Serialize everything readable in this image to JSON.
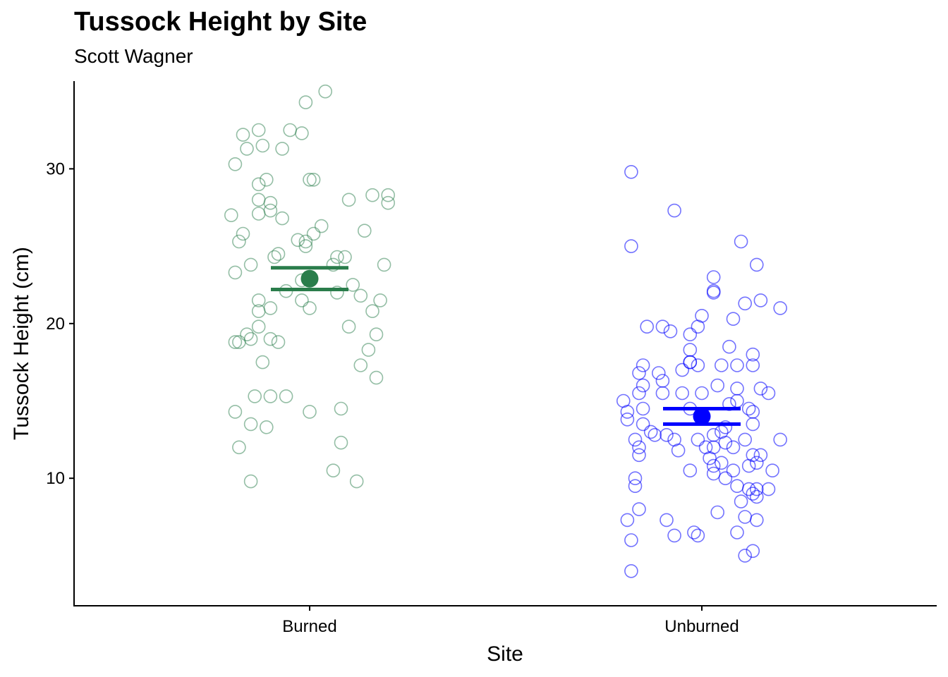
{
  "chart_data": {
    "type": "scatter",
    "title": "Tussock Height by Site",
    "subtitle": "Scott Wagner",
    "xlabel": "Site",
    "ylabel": "Tussock Height (cm)",
    "categories": [
      "Burned",
      "Unburned"
    ],
    "ylim": [
      3.2,
      36.4
    ],
    "yticks": [
      10,
      20,
      30
    ],
    "grid": false,
    "legend": "none",
    "series": [
      {
        "category": "Burned",
        "color": "#2a7d4b",
        "mean": 22.9,
        "se_low": 22.2,
        "se_high": 23.6,
        "points": [
          {
            "x": -0.19,
            "y": 30.3
          },
          {
            "x": -0.17,
            "y": 32.2
          },
          {
            "x": -0.16,
            "y": 31.3
          },
          {
            "x": -0.13,
            "y": 32.5
          },
          {
            "x": -0.12,
            "y": 31.5
          },
          {
            "x": -0.07,
            "y": 31.3
          },
          {
            "x": -0.05,
            "y": 32.5
          },
          {
            "x": -0.02,
            "y": 32.3
          },
          {
            "x": -0.01,
            "y": 34.3
          },
          {
            "x": 0.04,
            "y": 35.0
          },
          {
            "x": -0.13,
            "y": 29.0
          },
          {
            "x": -0.11,
            "y": 29.3
          },
          {
            "x": 0.01,
            "y": 29.3
          },
          {
            "x": 0.0,
            "y": 29.3
          },
          {
            "x": -0.13,
            "y": 28.0
          },
          {
            "x": -0.1,
            "y": 27.8
          },
          {
            "x": -0.13,
            "y": 27.1
          },
          {
            "x": -0.1,
            "y": 27.3
          },
          {
            "x": -0.07,
            "y": 26.8
          },
          {
            "x": -0.2,
            "y": 27.0
          },
          {
            "x": 0.1,
            "y": 28.0
          },
          {
            "x": 0.16,
            "y": 28.3
          },
          {
            "x": 0.2,
            "y": 28.3
          },
          {
            "x": 0.2,
            "y": 27.8
          },
          {
            "x": -0.17,
            "y": 25.8
          },
          {
            "x": -0.18,
            "y": 25.3
          },
          {
            "x": 0.03,
            "y": 26.3
          },
          {
            "x": 0.01,
            "y": 25.8
          },
          {
            "x": -0.03,
            "y": 25.4
          },
          {
            "x": -0.01,
            "y": 25.3
          },
          {
            "x": -0.01,
            "y": 25.0
          },
          {
            "x": 0.14,
            "y": 26.0
          },
          {
            "x": -0.15,
            "y": 23.8
          },
          {
            "x": -0.19,
            "y": 23.3
          },
          {
            "x": -0.09,
            "y": 24.3
          },
          {
            "x": -0.08,
            "y": 24.5
          },
          {
            "x": 0.06,
            "y": 23.8
          },
          {
            "x": 0.07,
            "y": 24.3
          },
          {
            "x": 0.09,
            "y": 24.3
          },
          {
            "x": 0.19,
            "y": 23.8
          },
          {
            "x": -0.13,
            "y": 21.5
          },
          {
            "x": -0.13,
            "y": 20.8
          },
          {
            "x": -0.1,
            "y": 21.0
          },
          {
            "x": -0.06,
            "y": 22.1
          },
          {
            "x": -0.02,
            "y": 21.5
          },
          {
            "x": 0.0,
            "y": 21.0
          },
          {
            "x": 0.07,
            "y": 22.0
          },
          {
            "x": 0.11,
            "y": 22.5
          },
          {
            "x": 0.13,
            "y": 21.8
          },
          {
            "x": 0.16,
            "y": 20.8
          },
          {
            "x": 0.18,
            "y": 21.5
          },
          {
            "x": -0.02,
            "y": 22.8
          },
          {
            "x": -0.18,
            "y": 18.8
          },
          {
            "x": -0.19,
            "y": 18.8
          },
          {
            "x": -0.16,
            "y": 19.3
          },
          {
            "x": -0.15,
            "y": 19.0
          },
          {
            "x": -0.13,
            "y": 19.8
          },
          {
            "x": -0.1,
            "y": 19.0
          },
          {
            "x": -0.08,
            "y": 18.8
          },
          {
            "x": -0.12,
            "y": 17.5
          },
          {
            "x": 0.1,
            "y": 19.8
          },
          {
            "x": 0.15,
            "y": 18.3
          },
          {
            "x": 0.17,
            "y": 19.3
          },
          {
            "x": 0.13,
            "y": 17.3
          },
          {
            "x": 0.17,
            "y": 16.5
          },
          {
            "x": -0.14,
            "y": 15.3
          },
          {
            "x": -0.1,
            "y": 15.3
          },
          {
            "x": -0.06,
            "y": 15.3
          },
          {
            "x": -0.19,
            "y": 14.3
          },
          {
            "x": -0.15,
            "y": 13.5
          },
          {
            "x": -0.11,
            "y": 13.3
          },
          {
            "x": -0.18,
            "y": 12.0
          },
          {
            "x": 0.0,
            "y": 14.3
          },
          {
            "x": 0.08,
            "y": 14.5
          },
          {
            "x": 0.08,
            "y": 12.3
          },
          {
            "x": 0.06,
            "y": 10.5
          },
          {
            "x": -0.15,
            "y": 9.8
          },
          {
            "x": 0.12,
            "y": 9.8
          }
        ]
      },
      {
        "category": "Unburned",
        "color": "#0000ff",
        "mean": 14.0,
        "se_low": 13.5,
        "se_high": 14.5,
        "points": [
          {
            "x": -0.18,
            "y": 29.8
          },
          {
            "x": -0.18,
            "y": 25.0
          },
          {
            "x": -0.07,
            "y": 27.3
          },
          {
            "x": 0.1,
            "y": 25.3
          },
          {
            "x": 0.14,
            "y": 23.8
          },
          {
            "x": 0.03,
            "y": 23.0
          },
          {
            "x": 0.03,
            "y": 22.0
          },
          {
            "x": 0.03,
            "y": 22.1
          },
          {
            "x": 0.11,
            "y": 21.3
          },
          {
            "x": 0.15,
            "y": 21.5
          },
          {
            "x": 0.2,
            "y": 21.0
          },
          {
            "x": 0.0,
            "y": 20.5
          },
          {
            "x": 0.08,
            "y": 20.3
          },
          {
            "x": -0.14,
            "y": 19.8
          },
          {
            "x": -0.1,
            "y": 19.8
          },
          {
            "x": -0.08,
            "y": 19.5
          },
          {
            "x": -0.03,
            "y": 19.3
          },
          {
            "x": -0.01,
            "y": 19.8
          },
          {
            "x": -0.03,
            "y": 18.3
          },
          {
            "x": -0.03,
            "y": 17.5
          },
          {
            "x": -0.03,
            "y": 17.5
          },
          {
            "x": -0.05,
            "y": 17.0
          },
          {
            "x": -0.01,
            "y": 17.3
          },
          {
            "x": 0.05,
            "y": 17.3
          },
          {
            "x": 0.09,
            "y": 17.3
          },
          {
            "x": 0.07,
            "y": 18.5
          },
          {
            "x": 0.13,
            "y": 18.0
          },
          {
            "x": 0.13,
            "y": 17.3
          },
          {
            "x": -0.15,
            "y": 17.3
          },
          {
            "x": -0.16,
            "y": 16.8
          },
          {
            "x": -0.11,
            "y": 16.8
          },
          {
            "x": -0.15,
            "y": 16.0
          },
          {
            "x": -0.16,
            "y": 15.5
          },
          {
            "x": -0.1,
            "y": 15.5
          },
          {
            "x": -0.1,
            "y": 16.3
          },
          {
            "x": -0.05,
            "y": 15.5
          },
          {
            "x": 0.0,
            "y": 15.5
          },
          {
            "x": 0.04,
            "y": 16.0
          },
          {
            "x": 0.09,
            "y": 15.8
          },
          {
            "x": 0.15,
            "y": 15.8
          },
          {
            "x": 0.17,
            "y": 15.5
          },
          {
            "x": -0.2,
            "y": 15.0
          },
          {
            "x": -0.19,
            "y": 14.3
          },
          {
            "x": -0.19,
            "y": 13.8
          },
          {
            "x": -0.15,
            "y": 14.5
          },
          {
            "x": -0.15,
            "y": 13.5
          },
          {
            "x": -0.13,
            "y": 13.0
          },
          {
            "x": -0.12,
            "y": 12.8
          },
          {
            "x": -0.17,
            "y": 12.5
          },
          {
            "x": -0.16,
            "y": 12.0
          },
          {
            "x": -0.16,
            "y": 11.5
          },
          {
            "x": -0.09,
            "y": 12.8
          },
          {
            "x": -0.07,
            "y": 12.5
          },
          {
            "x": -0.06,
            "y": 11.8
          },
          {
            "x": -0.01,
            "y": 12.5
          },
          {
            "x": -0.03,
            "y": 14.5
          },
          {
            "x": 0.03,
            "y": 12.0
          },
          {
            "x": 0.03,
            "y": 12.8
          },
          {
            "x": 0.05,
            "y": 13.0
          },
          {
            "x": 0.06,
            "y": 13.3
          },
          {
            "x": 0.07,
            "y": 14.8
          },
          {
            "x": 0.09,
            "y": 15.0
          },
          {
            "x": 0.12,
            "y": 14.5
          },
          {
            "x": 0.13,
            "y": 14.3
          },
          {
            "x": 0.13,
            "y": 13.5
          },
          {
            "x": 0.08,
            "y": 12.0
          },
          {
            "x": 0.11,
            "y": 12.5
          },
          {
            "x": 0.02,
            "y": 11.3
          },
          {
            "x": 0.03,
            "y": 10.8
          },
          {
            "x": 0.05,
            "y": 11.0
          },
          {
            "x": 0.06,
            "y": 12.3
          },
          {
            "x": 0.01,
            "y": 12.0
          },
          {
            "x": -0.03,
            "y": 10.5
          },
          {
            "x": 0.03,
            "y": 10.3
          },
          {
            "x": 0.06,
            "y": 10.0
          },
          {
            "x": 0.08,
            "y": 10.5
          },
          {
            "x": 0.12,
            "y": 10.8
          },
          {
            "x": 0.13,
            "y": 11.5
          },
          {
            "x": 0.14,
            "y": 11.0
          },
          {
            "x": 0.15,
            "y": 11.5
          },
          {
            "x": 0.18,
            "y": 10.5
          },
          {
            "x": 0.2,
            "y": 12.5
          },
          {
            "x": -0.17,
            "y": 10.0
          },
          {
            "x": -0.17,
            "y": 9.5
          },
          {
            "x": 0.09,
            "y": 9.5
          },
          {
            "x": 0.12,
            "y": 9.3
          },
          {
            "x": 0.13,
            "y": 9.0
          },
          {
            "x": 0.14,
            "y": 8.8
          },
          {
            "x": 0.14,
            "y": 9.3
          },
          {
            "x": 0.17,
            "y": 9.3
          },
          {
            "x": 0.1,
            "y": 8.5
          },
          {
            "x": -0.16,
            "y": 8.0
          },
          {
            "x": -0.19,
            "y": 7.3
          },
          {
            "x": -0.09,
            "y": 7.3
          },
          {
            "x": 0.04,
            "y": 7.8
          },
          {
            "x": 0.11,
            "y": 7.5
          },
          {
            "x": 0.14,
            "y": 7.3
          },
          {
            "x": -0.07,
            "y": 6.3
          },
          {
            "x": -0.02,
            "y": 6.5
          },
          {
            "x": -0.01,
            "y": 6.3
          },
          {
            "x": 0.09,
            "y": 6.5
          },
          {
            "x": -0.18,
            "y": 6.0
          },
          {
            "x": 0.11,
            "y": 5.0
          },
          {
            "x": 0.13,
            "y": 5.3
          },
          {
            "x": -0.18,
            "y": 4.0
          }
        ]
      }
    ]
  }
}
